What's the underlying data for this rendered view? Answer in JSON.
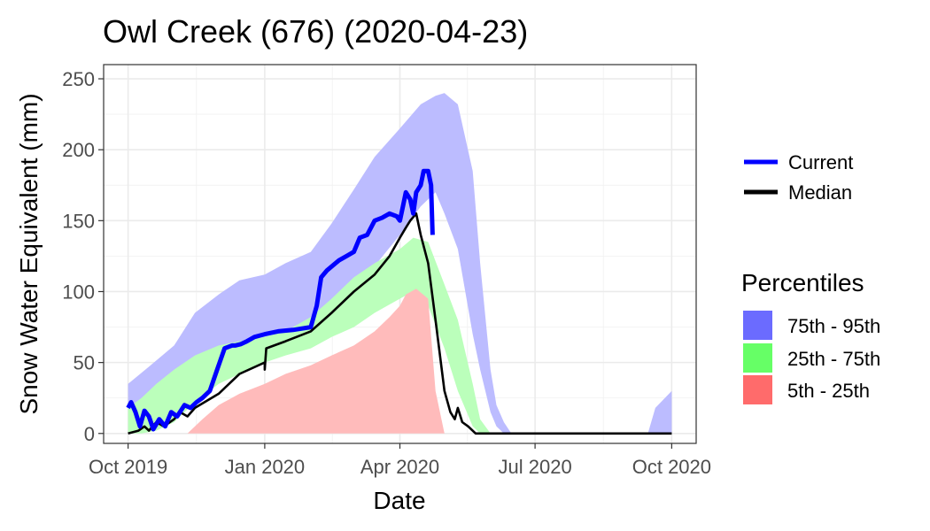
{
  "chart_data": {
    "type": "area",
    "title": "Owl Creek (676) (2020-04-23)",
    "xlabel": "Date",
    "ylabel": "Snow Water Equivalent (mm)",
    "xlim": [
      "2019-10-01",
      "2020-10-01"
    ],
    "ylim": [
      -7,
      260
    ],
    "grid": true,
    "legend_position": "right",
    "x_ticks": [
      "2019-10-01",
      "2020-01-01",
      "2020-04-01",
      "2020-07-01",
      "2020-10-01"
    ],
    "x_tick_labels": [
      "Oct 2019",
      "Jan 2020",
      "Apr 2020",
      "Jul 2020",
      "Oct 2020"
    ],
    "y_ticks": [
      0,
      50,
      100,
      150,
      200,
      250
    ],
    "y_tick_labels": [
      "0",
      "50",
      "100",
      "150",
      "200",
      "250"
    ],
    "legend": {
      "lines_title": "",
      "lines": [
        {
          "name": "Current",
          "color": "#0000ff"
        },
        {
          "name": "Median",
          "color": "#000000"
        }
      ],
      "bands_title": "Percentiles",
      "bands": [
        {
          "name": "75th - 95th",
          "color": "#6b6bff"
        },
        {
          "name": "25th - 75th",
          "color": "#66ff66"
        },
        {
          "name": "5th - 25th",
          "color": "#ff6b6b"
        }
      ]
    },
    "bands": [
      {
        "name": "75th - 95th",
        "color": "#bcbcff",
        "x": [
          "2019-10-01",
          "2019-10-15",
          "2019-11-01",
          "2019-11-15",
          "2019-12-01",
          "2019-12-15",
          "2020-01-01",
          "2020-01-15",
          "2020-02-01",
          "2020-02-15",
          "2020-03-01",
          "2020-03-15",
          "2020-04-01",
          "2020-04-15",
          "2020-04-25",
          "2020-05-01",
          "2020-05-10",
          "2020-05-20",
          "2020-05-25",
          "2020-06-01",
          "2020-06-05",
          "2020-06-10",
          "2020-06-15",
          "2020-09-15",
          "2020-09-20",
          "2020-10-01"
        ],
        "lower": [
          18,
          25,
          22,
          35,
          55,
          62,
          68,
          72,
          78,
          90,
          105,
          118,
          140,
          160,
          170,
          155,
          130,
          70,
          45,
          15,
          5,
          0,
          0,
          0,
          0,
          0
        ],
        "upper": [
          35,
          47,
          62,
          85,
          98,
          108,
          112,
          120,
          128,
          148,
          172,
          195,
          215,
          232,
          238,
          240,
          232,
          185,
          120,
          45,
          20,
          8,
          0,
          0,
          18,
          30
        ]
      },
      {
        "name": "25th - 75th",
        "color": "#bbffbb",
        "x": [
          "2019-10-01",
          "2019-10-10",
          "2019-10-20",
          "2019-11-01",
          "2019-11-15",
          "2019-12-01",
          "2019-12-15",
          "2020-01-01",
          "2020-01-15",
          "2020-02-01",
          "2020-02-15",
          "2020-03-01",
          "2020-03-15",
          "2020-04-01",
          "2020-04-10",
          "2020-04-20",
          "2020-05-01",
          "2020-05-10",
          "2020-05-20",
          "2020-05-25",
          "2020-06-01"
        ],
        "lower": [
          0,
          0,
          2,
          8,
          22,
          35,
          42,
          50,
          55,
          60,
          68,
          75,
          85,
          95,
          100,
          90,
          60,
          30,
          5,
          0,
          0
        ],
        "upper": [
          18,
          25,
          35,
          45,
          55,
          62,
          65,
          68,
          72,
          82,
          95,
          110,
          120,
          130,
          138,
          135,
          105,
          80,
          35,
          10,
          0
        ]
      },
      {
        "name": "5th - 25th",
        "color": "#ffbbbb",
        "x": [
          "2019-10-01",
          "2019-11-10",
          "2019-11-20",
          "2019-12-01",
          "2019-12-15",
          "2020-01-01",
          "2020-01-15",
          "2020-02-01",
          "2020-02-15",
          "2020-03-01",
          "2020-03-15",
          "2020-03-25",
          "2020-04-01",
          "2020-04-05",
          "2020-04-12",
          "2020-04-20",
          "2020-04-25",
          "2020-05-01"
        ],
        "lower": [
          0,
          0,
          0,
          0,
          0,
          0,
          0,
          0,
          0,
          0,
          0,
          0,
          0,
          0,
          0,
          0,
          0,
          0
        ],
        "upper": [
          0,
          0,
          10,
          20,
          28,
          35,
          42,
          48,
          55,
          62,
          72,
          82,
          90,
          98,
          102,
          95,
          30,
          0
        ]
      }
    ],
    "series": [
      {
        "name": "Median",
        "color": "#000000",
        "x": [
          "2019-10-01",
          "2019-10-08",
          "2019-10-12",
          "2019-10-15",
          "2019-10-20",
          "2019-10-25",
          "2019-11-01",
          "2019-11-05",
          "2019-11-10",
          "2019-11-15",
          "2019-12-01",
          "2019-12-15",
          "2020-01-01",
          "2020-01-01",
          "2020-01-02",
          "2020-01-15",
          "2020-02-01",
          "2020-02-15",
          "2020-03-01",
          "2020-03-15",
          "2020-03-25",
          "2020-04-01",
          "2020-04-05",
          "2020-04-08",
          "2020-04-12",
          "2020-04-15",
          "2020-04-20",
          "2020-04-25",
          "2020-05-01",
          "2020-05-05",
          "2020-05-08",
          "2020-05-10",
          "2020-05-13",
          "2020-05-17",
          "2020-05-22",
          "2020-06-01",
          "2020-10-01"
        ],
        "y": [
          0,
          2,
          5,
          2,
          8,
          5,
          10,
          15,
          12,
          18,
          28,
          42,
          50,
          45,
          60,
          65,
          72,
          85,
          100,
          112,
          125,
          138,
          145,
          150,
          155,
          140,
          120,
          80,
          30,
          15,
          10,
          18,
          8,
          5,
          0,
          0,
          0
        ]
      },
      {
        "name": "Current",
        "color": "#0000ff",
        "x": [
          "2019-10-01",
          "2019-10-03",
          "2019-10-06",
          "2019-10-09",
          "2019-10-12",
          "2019-10-15",
          "2019-10-18",
          "2019-10-22",
          "2019-10-26",
          "2019-10-30",
          "2019-11-03",
          "2019-11-08",
          "2019-11-12",
          "2019-11-16",
          "2019-11-20",
          "2019-11-25",
          "2019-11-30",
          "2019-12-05",
          "2019-12-10",
          "2019-12-12",
          "2019-12-16",
          "2019-12-20",
          "2019-12-25",
          "2020-01-01",
          "2020-01-10",
          "2020-01-20",
          "2020-02-01",
          "2020-02-05",
          "2020-02-08",
          "2020-02-12",
          "2020-02-20",
          "2020-02-25",
          "2020-03-01",
          "2020-03-05",
          "2020-03-10",
          "2020-03-15",
          "2020-03-20",
          "2020-03-25",
          "2020-03-30",
          "2020-04-01",
          "2020-04-03",
          "2020-04-05",
          "2020-04-08",
          "2020-04-10",
          "2020-04-12",
          "2020-04-15",
          "2020-04-17",
          "2020-04-20",
          "2020-04-22",
          "2020-04-23"
        ],
        "y": [
          18,
          22,
          15,
          5,
          16,
          12,
          3,
          10,
          5,
          15,
          12,
          20,
          18,
          22,
          25,
          30,
          45,
          60,
          62,
          62,
          63,
          65,
          68,
          70,
          72,
          73,
          75,
          90,
          110,
          115,
          122,
          125,
          128,
          138,
          140,
          150,
          152,
          155,
          153,
          150,
          160,
          170,
          165,
          155,
          170,
          175,
          185,
          185,
          175,
          140
        ]
      }
    ]
  }
}
